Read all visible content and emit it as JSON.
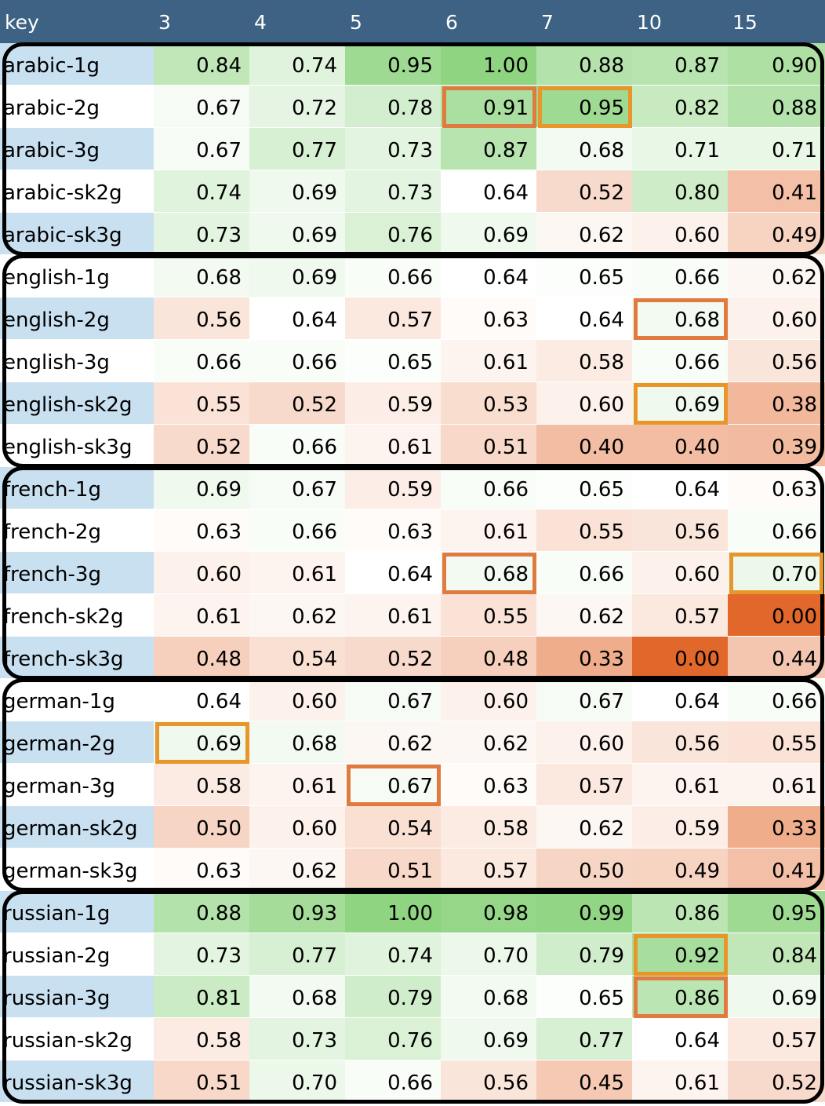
{
  "chart_data": {
    "type": "heatmap",
    "key_label": "key",
    "columns": [
      "3",
      "4",
      "5",
      "6",
      "7",
      "10",
      "15"
    ],
    "rows": [
      {
        "key": "arabic-1g",
        "values": [
          "0.84",
          "0.74",
          "0.95",
          "1.00",
          "0.88",
          "0.87",
          "0.90"
        ]
      },
      {
        "key": "arabic-2g",
        "values": [
          "0.67",
          "0.72",
          "0.78",
          "0.91",
          "0.95",
          "0.82",
          "0.88"
        ]
      },
      {
        "key": "arabic-3g",
        "values": [
          "0.67",
          "0.77",
          "0.73",
          "0.87",
          "0.68",
          "0.71",
          "0.71"
        ]
      },
      {
        "key": "arabic-sk2g",
        "values": [
          "0.74",
          "0.69",
          "0.73",
          "0.64",
          "0.52",
          "0.80",
          "0.41"
        ]
      },
      {
        "key": "arabic-sk3g",
        "values": [
          "0.73",
          "0.69",
          "0.76",
          "0.69",
          "0.62",
          "0.60",
          "0.49"
        ]
      },
      {
        "key": "english-1g",
        "values": [
          "0.68",
          "0.69",
          "0.66",
          "0.64",
          "0.65",
          "0.66",
          "0.62"
        ]
      },
      {
        "key": "english-2g",
        "values": [
          "0.56",
          "0.64",
          "0.57",
          "0.63",
          "0.64",
          "0.68",
          "0.60"
        ]
      },
      {
        "key": "english-3g",
        "values": [
          "0.66",
          "0.66",
          "0.65",
          "0.61",
          "0.58",
          "0.66",
          "0.56"
        ]
      },
      {
        "key": "english-sk2g",
        "values": [
          "0.55",
          "0.52",
          "0.59",
          "0.53",
          "0.60",
          "0.69",
          "0.38"
        ]
      },
      {
        "key": "english-sk3g",
        "values": [
          "0.52",
          "0.66",
          "0.61",
          "0.51",
          "0.40",
          "0.40",
          "0.39"
        ]
      },
      {
        "key": "french-1g",
        "values": [
          "0.69",
          "0.67",
          "0.59",
          "0.66",
          "0.65",
          "0.64",
          "0.63"
        ]
      },
      {
        "key": "french-2g",
        "values": [
          "0.63",
          "0.66",
          "0.63",
          "0.61",
          "0.55",
          "0.56",
          "0.66"
        ]
      },
      {
        "key": "french-3g",
        "values": [
          "0.60",
          "0.61",
          "0.64",
          "0.68",
          "0.66",
          "0.60",
          "0.70"
        ]
      },
      {
        "key": "french-sk2g",
        "values": [
          "0.61",
          "0.62",
          "0.61",
          "0.55",
          "0.62",
          "0.57",
          "0.00"
        ]
      },
      {
        "key": "french-sk3g",
        "values": [
          "0.48",
          "0.54",
          "0.52",
          "0.48",
          "0.33",
          "0.00",
          "0.44"
        ]
      },
      {
        "key": "german-1g",
        "values": [
          "0.64",
          "0.60",
          "0.67",
          "0.60",
          "0.67",
          "0.64",
          "0.66"
        ]
      },
      {
        "key": "german-2g",
        "values": [
          "0.69",
          "0.68",
          "0.62",
          "0.62",
          "0.60",
          "0.56",
          "0.55"
        ]
      },
      {
        "key": "german-3g",
        "values": [
          "0.58",
          "0.61",
          "0.67",
          "0.63",
          "0.57",
          "0.61",
          "0.61"
        ]
      },
      {
        "key": "german-sk2g",
        "values": [
          "0.50",
          "0.60",
          "0.54",
          "0.58",
          "0.62",
          "0.59",
          "0.33"
        ]
      },
      {
        "key": "german-sk3g",
        "values": [
          "0.63",
          "0.62",
          "0.51",
          "0.57",
          "0.50",
          "0.49",
          "0.41"
        ]
      },
      {
        "key": "russian-1g",
        "values": [
          "0.88",
          "0.93",
          "1.00",
          "0.98",
          "0.99",
          "0.86",
          "0.95"
        ]
      },
      {
        "key": "russian-2g",
        "values": [
          "0.73",
          "0.77",
          "0.74",
          "0.70",
          "0.79",
          "0.92",
          "0.84"
        ]
      },
      {
        "key": "russian-3g",
        "values": [
          "0.81",
          "0.68",
          "0.79",
          "0.68",
          "0.65",
          "0.86",
          "0.69"
        ]
      },
      {
        "key": "russian-sk2g",
        "values": [
          "0.58",
          "0.73",
          "0.76",
          "0.69",
          "0.77",
          "0.64",
          "0.57"
        ]
      },
      {
        "key": "russian-sk3g",
        "values": [
          "0.51",
          "0.70",
          "0.66",
          "0.56",
          "0.45",
          "0.61",
          "0.52"
        ]
      }
    ],
    "groups": [
      {
        "name": "arabic",
        "row_start": 0,
        "row_end": 4
      },
      {
        "name": "english",
        "row_start": 5,
        "row_end": 9
      },
      {
        "name": "french",
        "row_start": 10,
        "row_end": 14
      },
      {
        "name": "german",
        "row_start": 15,
        "row_end": 19
      },
      {
        "name": "russian",
        "row_start": 20,
        "row_end": 24
      }
    ],
    "highlights": [
      {
        "row": 1,
        "col": 3,
        "color": "#E07A3F"
      },
      {
        "row": 1,
        "col": 4,
        "color": "#E8962A"
      },
      {
        "row": 6,
        "col": 5,
        "color": "#E07A3F"
      },
      {
        "row": 8,
        "col": 5,
        "color": "#E8962A"
      },
      {
        "row": 12,
        "col": 3,
        "color": "#E07A3F"
      },
      {
        "row": 12,
        "col": 6,
        "color": "#E8962A"
      },
      {
        "row": 16,
        "col": 0,
        "color": "#E8962A"
      },
      {
        "row": 17,
        "col": 2,
        "color": "#E07A3F"
      },
      {
        "row": 21,
        "col": 5,
        "color": "#E8962A"
      },
      {
        "row": 22,
        "col": 5,
        "color": "#E07A3F"
      }
    ],
    "colors": {
      "header_bg": "#3E6283",
      "key_band_bg": "#C9E0F1",
      "high": "#8FD481",
      "mid": "#FFFFFF",
      "low": "#E2672A"
    },
    "scale": {
      "low": 0.0,
      "mid": 0.64,
      "high": 1.0
    }
  }
}
